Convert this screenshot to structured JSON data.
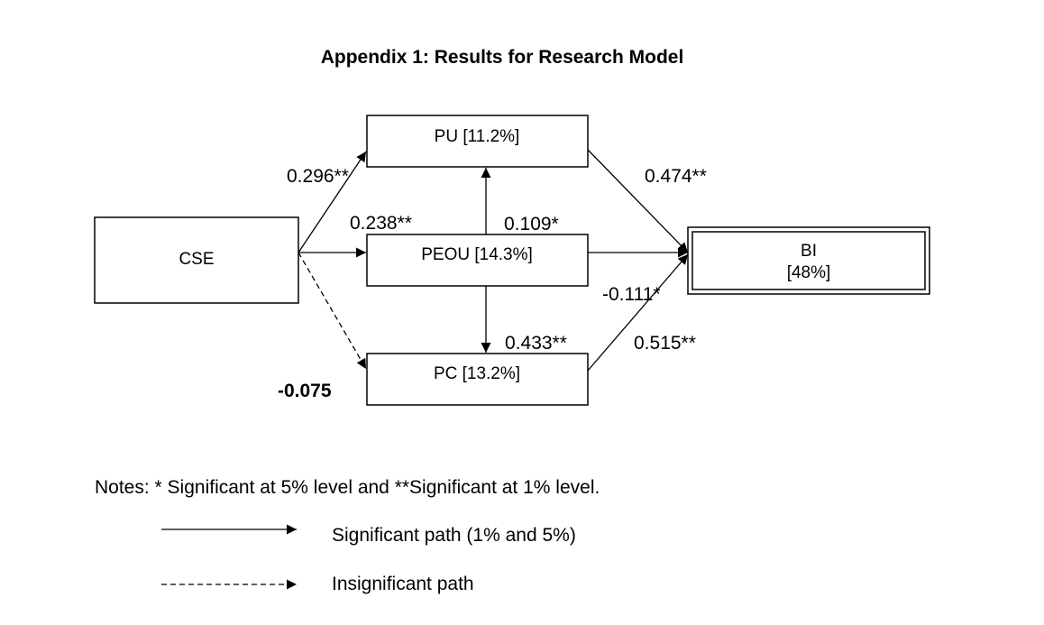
{
  "title": "Appendix 1: Results for Research Model",
  "nodes": {
    "cse": {
      "label": "CSE"
    },
    "pu": {
      "label": "PU [11.2%]"
    },
    "peou": {
      "label": "PEOU [14.3%]"
    },
    "pc": {
      "label": "PC [13.2%]"
    },
    "bi": {
      "line1": "BI",
      "line2": "[48%]"
    }
  },
  "paths": {
    "cse_pu": "0.296**",
    "cse_peou": "0.238**",
    "cse_pc": "-0.075",
    "peou_pu": "0.109*",
    "peou_pc": "0.433**",
    "pu_bi": "0.474**",
    "peou_bi": "-0.111*",
    "pc_bi": "0.515**"
  },
  "notes": {
    "text": "Notes: * Significant at 5% level and **Significant at 1% level.",
    "legend_significant": "Significant path (1% and 5%)",
    "legend_insignificant": "Insignificant path"
  }
}
